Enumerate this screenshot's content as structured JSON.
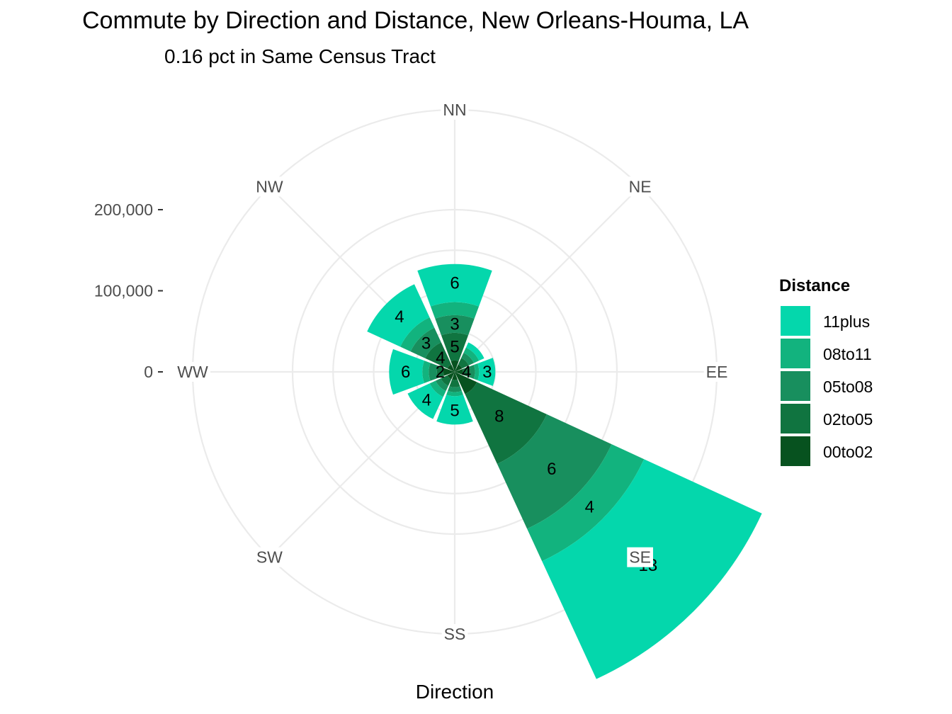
{
  "chart_data": {
    "type": "bar",
    "coordinate_system": "polar",
    "title": "Commute by Direction and Distance, New Orleans-Houma, LA",
    "subtitle": "0.16 pct in Same Census Tract",
    "xlabel": "Direction",
    "ylabel": "",
    "categories": [
      "NN",
      "NE",
      "EE",
      "SE",
      "SS",
      "SW",
      "WW",
      "NW"
    ],
    "r_ticks": [
      0,
      100000,
      200000
    ],
    "r_tick_labels": [
      "0",
      "100,000",
      "200,000"
    ],
    "rlim": [
      0,
      270000
    ],
    "grid": true,
    "legend": {
      "title": "Distance",
      "position": "right"
    },
    "series": [
      {
        "name": "00to02",
        "color": "#07521F",
        "values": [
          14000,
          10000,
          10000,
          30000,
          10000,
          10000,
          14000,
          10000
        ],
        "labels": [
          "",
          "",
          "",
          "",
          "",
          "",
          "",
          ""
        ]
      },
      {
        "name": "02to05",
        "color": "#107440",
        "values": [
          34000,
          9000,
          9000,
          95000,
          9000,
          9000,
          8000,
          30000
        ],
        "labels": [
          "5",
          "",
          "4",
          "8",
          "",
          "",
          "2",
          "4"
        ]
      },
      {
        "name": "05to08",
        "color": "#188F5E",
        "values": [
          22000,
          7000,
          6000,
          88000,
          6000,
          7000,
          10000,
          20000
        ],
        "labels": [
          "3",
          "",
          "",
          "6",
          "",
          "",
          "",
          "3"
        ]
      },
      {
        "name": "08to11",
        "color": "#12B37E",
        "values": [
          16000,
          7000,
          5000,
          44000,
          5000,
          8000,
          8000,
          14000
        ],
        "labels": [
          "",
          "",
          "",
          "4",
          "",
          "",
          "",
          ""
        ]
      },
      {
        "name": "11plus",
        "color": "#04D7AC",
        "values": [
          47000,
          7000,
          20000,
          160000,
          35000,
          30000,
          41000,
          45000
        ],
        "labels": [
          "6",
          "",
          "3",
          "13",
          "5",
          "4",
          "6",
          "4"
        ]
      }
    ],
    "legend_order": [
      "11plus",
      "08to11",
      "05to08",
      "02to05",
      "00to02"
    ]
  }
}
